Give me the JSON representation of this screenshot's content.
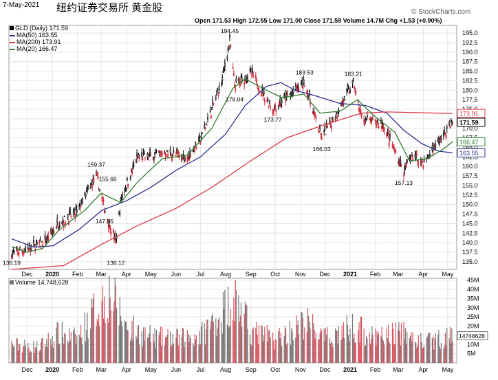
{
  "header": {
    "date": "7-May-2021",
    "title": "纽约证券交易所 黄金股",
    "ohlc_label": "Open 171.53  High 172.55  Low 171.00  Close 171.59  Volume 14.7M  Chg +1.53 (+0.90%)",
    "watermark": "© StockCharts.com"
  },
  "legend": {
    "price": "GLD (Daily) 171.59",
    "ma50": "MA(50) 163.55",
    "ma200": "MA(200) 173.91",
    "ma20": "MA(20) 166.47"
  },
  "volume_legend": "Volume 14,748,628",
  "colors": {
    "up": "#000000",
    "down": "#d0303d",
    "ma50": "#2b2f8f",
    "ma200": "#dc3545",
    "ma20": "#2e7d2e",
    "vol_up": "#777777",
    "vol_down": "#d9545f",
    "grid": "#e4e4e4"
  },
  "chart_data": [
    {
      "type": "candlestick",
      "ylim": [
        133,
        197
      ],
      "y_ticks": [
        135.0,
        137.5,
        140.0,
        142.5,
        145.0,
        147.5,
        150.0,
        152.5,
        155.0,
        157.5,
        160.0,
        162.5,
        165.0,
        167.5,
        170.0,
        172.5,
        175.0,
        177.5,
        180.0,
        182.5,
        185.0,
        187.5,
        190.0,
        192.5,
        195.0
      ],
      "x_ticks": [
        "Dec",
        "2020",
        "Feb",
        "Mar",
        "Apr",
        "May",
        "Jun",
        "Jul",
        "Aug",
        "Sep",
        "Oct",
        "Nov",
        "Dec",
        "2021",
        "Feb",
        "Mar",
        "Apr",
        "May"
      ],
      "annotations": [
        {
          "label": "136.19",
          "x": "2019-11-12",
          "y": 136.19
        },
        {
          "label": "159.37",
          "x": "2020-02-24",
          "y": 159.37
        },
        {
          "label": "155.66",
          "x": "2020-03-09",
          "y": 155.66
        },
        {
          "label": "147.05",
          "x": "2020-03-05",
          "y": 147.05
        },
        {
          "label": "136.12",
          "x": "2020-03-19",
          "y": 136.12
        },
        {
          "label": "194.45",
          "x": "2020-08-06",
          "y": 194.45
        },
        {
          "label": "179.04",
          "x": "2020-08-12",
          "y": 179.04
        },
        {
          "label": "173.77",
          "x": "2020-09-28",
          "y": 173.77
        },
        {
          "label": "183.53",
          "x": "2020-11-06",
          "y": 183.53
        },
        {
          "label": "166.03",
          "x": "2020-11-27",
          "y": 166.03
        },
        {
          "label": "183.21",
          "x": "2021-01-05",
          "y": 183.21
        },
        {
          "label": "157.13",
          "x": "2021-03-08",
          "y": 157.13
        }
      ],
      "right_labels": [
        {
          "label": "173.91",
          "y": 173.91,
          "series": "MA(200)"
        },
        {
          "label": "171.59",
          "y": 171.59,
          "series": "GLD (Daily)"
        },
        {
          "label": "166.47",
          "y": 166.47,
          "series": "MA(20)"
        },
        {
          "label": "163.55",
          "y": 163.55,
          "series": "MA(50)"
        }
      ],
      "close_path": [
        {
          "date": "2019-11-12",
          "close": 137.0
        },
        {
          "date": "2019-12-03",
          "close": 138.5
        },
        {
          "date": "2019-12-24",
          "close": 140.2
        },
        {
          "date": "2020-01-08",
          "close": 145.0
        },
        {
          "date": "2020-01-31",
          "close": 148.0
        },
        {
          "date": "2020-02-24",
          "close": 157.5
        },
        {
          "date": "2020-03-05",
          "close": 149.0
        },
        {
          "date": "2020-03-19",
          "close": 140.0
        },
        {
          "date": "2020-03-26",
          "close": 152.0
        },
        {
          "date": "2020-04-14",
          "close": 162.0
        },
        {
          "date": "2020-05-18",
          "close": 163.5
        },
        {
          "date": "2020-06-15",
          "close": 162.5
        },
        {
          "date": "2020-07-01",
          "close": 167.0
        },
        {
          "date": "2020-07-27",
          "close": 182.0
        },
        {
          "date": "2020-08-06",
          "close": 193.0
        },
        {
          "date": "2020-08-12",
          "close": 181.0
        },
        {
          "date": "2020-09-01",
          "close": 184.5
        },
        {
          "date": "2020-09-28",
          "close": 175.0
        },
        {
          "date": "2020-10-15",
          "close": 178.0
        },
        {
          "date": "2020-11-06",
          "close": 182.0
        },
        {
          "date": "2020-11-27",
          "close": 167.5
        },
        {
          "date": "2020-12-18",
          "close": 175.0
        },
        {
          "date": "2021-01-05",
          "close": 182.0
        },
        {
          "date": "2021-01-15",
          "close": 172.5
        },
        {
          "date": "2021-02-10",
          "close": 171.0
        },
        {
          "date": "2021-03-08",
          "close": 158.5
        },
        {
          "date": "2021-03-18",
          "close": 163.0
        },
        {
          "date": "2021-04-01",
          "close": 161.0
        },
        {
          "date": "2021-04-20",
          "close": 166.5
        },
        {
          "date": "2021-05-07",
          "close": 171.59
        }
      ],
      "series": [
        {
          "name": "MA(50)",
          "points": [
            {
              "date": "2019-11-12",
              "v": 141.0
            },
            {
              "date": "2019-12-10",
              "v": 138.8
            },
            {
              "date": "2020-01-02",
              "v": 139.2
            },
            {
              "date": "2020-02-03",
              "v": 143.5
            },
            {
              "date": "2020-03-02",
              "v": 148.5
            },
            {
              "date": "2020-04-01",
              "v": 151.0
            },
            {
              "date": "2020-05-01",
              "v": 154.5
            },
            {
              "date": "2020-06-01",
              "v": 159.0
            },
            {
              "date": "2020-07-01",
              "v": 162.5
            },
            {
              "date": "2020-08-01",
              "v": 168.5
            },
            {
              "date": "2020-08-25",
              "v": 176.0
            },
            {
              "date": "2020-09-20",
              "v": 181.0
            },
            {
              "date": "2020-10-08",
              "v": 182.0
            },
            {
              "date": "2020-10-25",
              "v": 180.0
            },
            {
              "date": "2020-11-20",
              "v": 178.5
            },
            {
              "date": "2020-12-20",
              "v": 176.5
            },
            {
              "date": "2021-01-20",
              "v": 176.0
            },
            {
              "date": "2021-02-15",
              "v": 174.0
            },
            {
              "date": "2021-03-08",
              "v": 169.5
            },
            {
              "date": "2021-03-30",
              "v": 166.0
            },
            {
              "date": "2021-04-20",
              "v": 164.0
            },
            {
              "date": "2021-05-07",
              "v": 163.55
            }
          ]
        },
        {
          "name": "MA(200)",
          "points": [
            {
              "date": "2019-11-12",
              "v": 133.0
            },
            {
              "date": "2020-01-15",
              "v": 134.0
            },
            {
              "date": "2020-03-01",
              "v": 139.5
            },
            {
              "date": "2020-04-15",
              "v": 144.5
            },
            {
              "date": "2020-06-01",
              "v": 149.0
            },
            {
              "date": "2020-07-15",
              "v": 154.5
            },
            {
              "date": "2020-09-01",
              "v": 161.5
            },
            {
              "date": "2020-10-15",
              "v": 167.5
            },
            {
              "date": "2020-12-01",
              "v": 171.0
            },
            {
              "date": "2021-01-15",
              "v": 174.0
            },
            {
              "date": "2021-02-15",
              "v": 174.3
            },
            {
              "date": "2021-05-07",
              "v": 173.91
            }
          ]
        },
        {
          "name": "MA(20)",
          "points": [
            {
              "date": "2019-11-12",
              "v": 139.0
            },
            {
              "date": "2019-12-01",
              "v": 137.5
            },
            {
              "date": "2019-12-20",
              "v": 138.5
            },
            {
              "date": "2020-01-10",
              "v": 143.5
            },
            {
              "date": "2020-02-10",
              "v": 148.5
            },
            {
              "date": "2020-03-01",
              "v": 153.0
            },
            {
              "date": "2020-03-25",
              "v": 150.5
            },
            {
              "date": "2020-04-15",
              "v": 156.0
            },
            {
              "date": "2020-05-15",
              "v": 162.0
            },
            {
              "date": "2020-06-15",
              "v": 163.0
            },
            {
              "date": "2020-07-15",
              "v": 170.0
            },
            {
              "date": "2020-08-10",
              "v": 180.5
            },
            {
              "date": "2020-08-25",
              "v": 183.0
            },
            {
              "date": "2020-09-20",
              "v": 180.0
            },
            {
              "date": "2020-10-10",
              "v": 178.0
            },
            {
              "date": "2020-11-05",
              "v": 179.0
            },
            {
              "date": "2020-11-25",
              "v": 174.0
            },
            {
              "date": "2020-12-20",
              "v": 174.5
            },
            {
              "date": "2021-01-10",
              "v": 177.5
            },
            {
              "date": "2021-02-01",
              "v": 173.0
            },
            {
              "date": "2021-02-25",
              "v": 169.0
            },
            {
              "date": "2021-03-15",
              "v": 161.5
            },
            {
              "date": "2021-04-05",
              "v": 162.0
            },
            {
              "date": "2021-04-25",
              "v": 164.5
            },
            {
              "date": "2021-05-07",
              "v": 166.47
            }
          ]
        }
      ]
    },
    {
      "type": "bar",
      "title": "Volume 14,748,628",
      "ylim": [
        0,
        46000000
      ],
      "y_ticks": [
        "5M",
        "10M",
        "15M",
        "20M",
        "25M",
        "30M",
        "35M",
        "40M",
        "45M"
      ],
      "last_value_label": "14748628",
      "x_ticks": [
        "Dec",
        "2020",
        "Feb",
        "Mar",
        "Apr",
        "May",
        "Jun",
        "Jul",
        "Aug",
        "Sep",
        "Oct",
        "Nov",
        "Dec",
        "2021",
        "Feb",
        "Mar",
        "Apr",
        "May"
      ],
      "volume_profile": [
        {
          "date": "2019-11-12",
          "v": 10000000
        },
        {
          "date": "2019-12-15",
          "v": 8500000
        },
        {
          "date": "2020-01-08",
          "v": 16000000
        },
        {
          "date": "2020-02-01",
          "v": 13000000
        },
        {
          "date": "2020-02-24",
          "v": 30000000
        },
        {
          "date": "2020-03-12",
          "v": 38000000
        },
        {
          "date": "2020-04-01",
          "v": 20000000
        },
        {
          "date": "2020-05-01",
          "v": 14000000
        },
        {
          "date": "2020-06-01",
          "v": 13000000
        },
        {
          "date": "2020-07-01",
          "v": 15000000
        },
        {
          "date": "2020-07-28",
          "v": 28000000
        },
        {
          "date": "2020-08-12",
          "v": 36000000
        },
        {
          "date": "2020-09-01",
          "v": 17000000
        },
        {
          "date": "2020-10-01",
          "v": 13000000
        },
        {
          "date": "2020-11-09",
          "v": 22000000
        },
        {
          "date": "2020-12-01",
          "v": 13000000
        },
        {
          "date": "2021-01-06",
          "v": 20000000
        },
        {
          "date": "2021-02-01",
          "v": 13000000
        },
        {
          "date": "2021-03-01",
          "v": 17000000
        },
        {
          "date": "2021-04-01",
          "v": 11000000
        },
        {
          "date": "2021-05-07",
          "v": 14748628
        }
      ]
    }
  ]
}
